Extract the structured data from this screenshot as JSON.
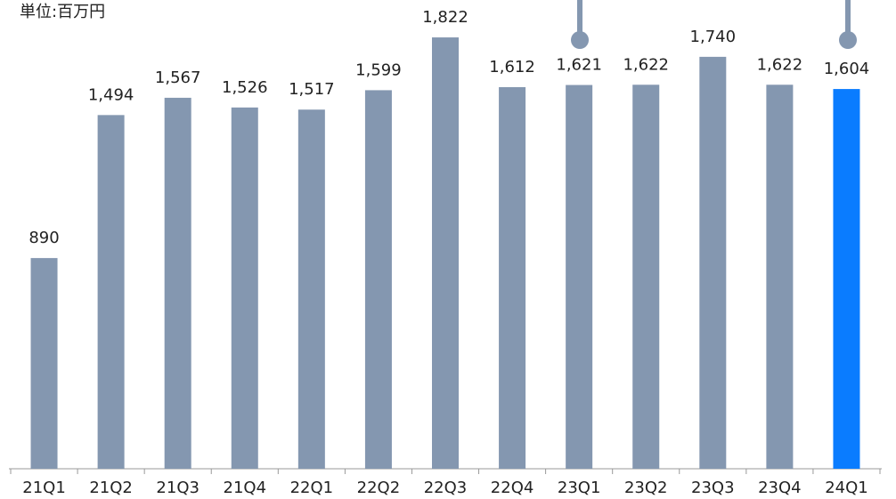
{
  "chart_data": {
    "type": "bar",
    "subtitle": "単位:百万円",
    "categories": [
      "21Q1",
      "21Q2",
      "21Q3",
      "21Q4",
      "22Q1",
      "22Q2",
      "22Q3",
      "22Q4",
      "23Q1",
      "23Q2",
      "23Q3",
      "23Q4",
      "24Q1"
    ],
    "values": [
      890,
      1494,
      1567,
      1526,
      1517,
      1599,
      1822,
      1612,
      1621,
      1622,
      1740,
      1622,
      1604
    ],
    "value_labels": [
      "890",
      "1,494",
      "1,567",
      "1,526",
      "1,517",
      "1,599",
      "1,822",
      "1,612",
      "1,621",
      "1,622",
      "1,740",
      "1,622",
      "1,604"
    ],
    "colors": [
      "#8497b0",
      "#8497b0",
      "#8497b0",
      "#8497b0",
      "#8497b0",
      "#8497b0",
      "#8497b0",
      "#8497b0",
      "#8497b0",
      "#8497b0",
      "#8497b0",
      "#8497b0",
      "#0a7cff"
    ],
    "ylim": [
      0,
      1980
    ]
  }
}
